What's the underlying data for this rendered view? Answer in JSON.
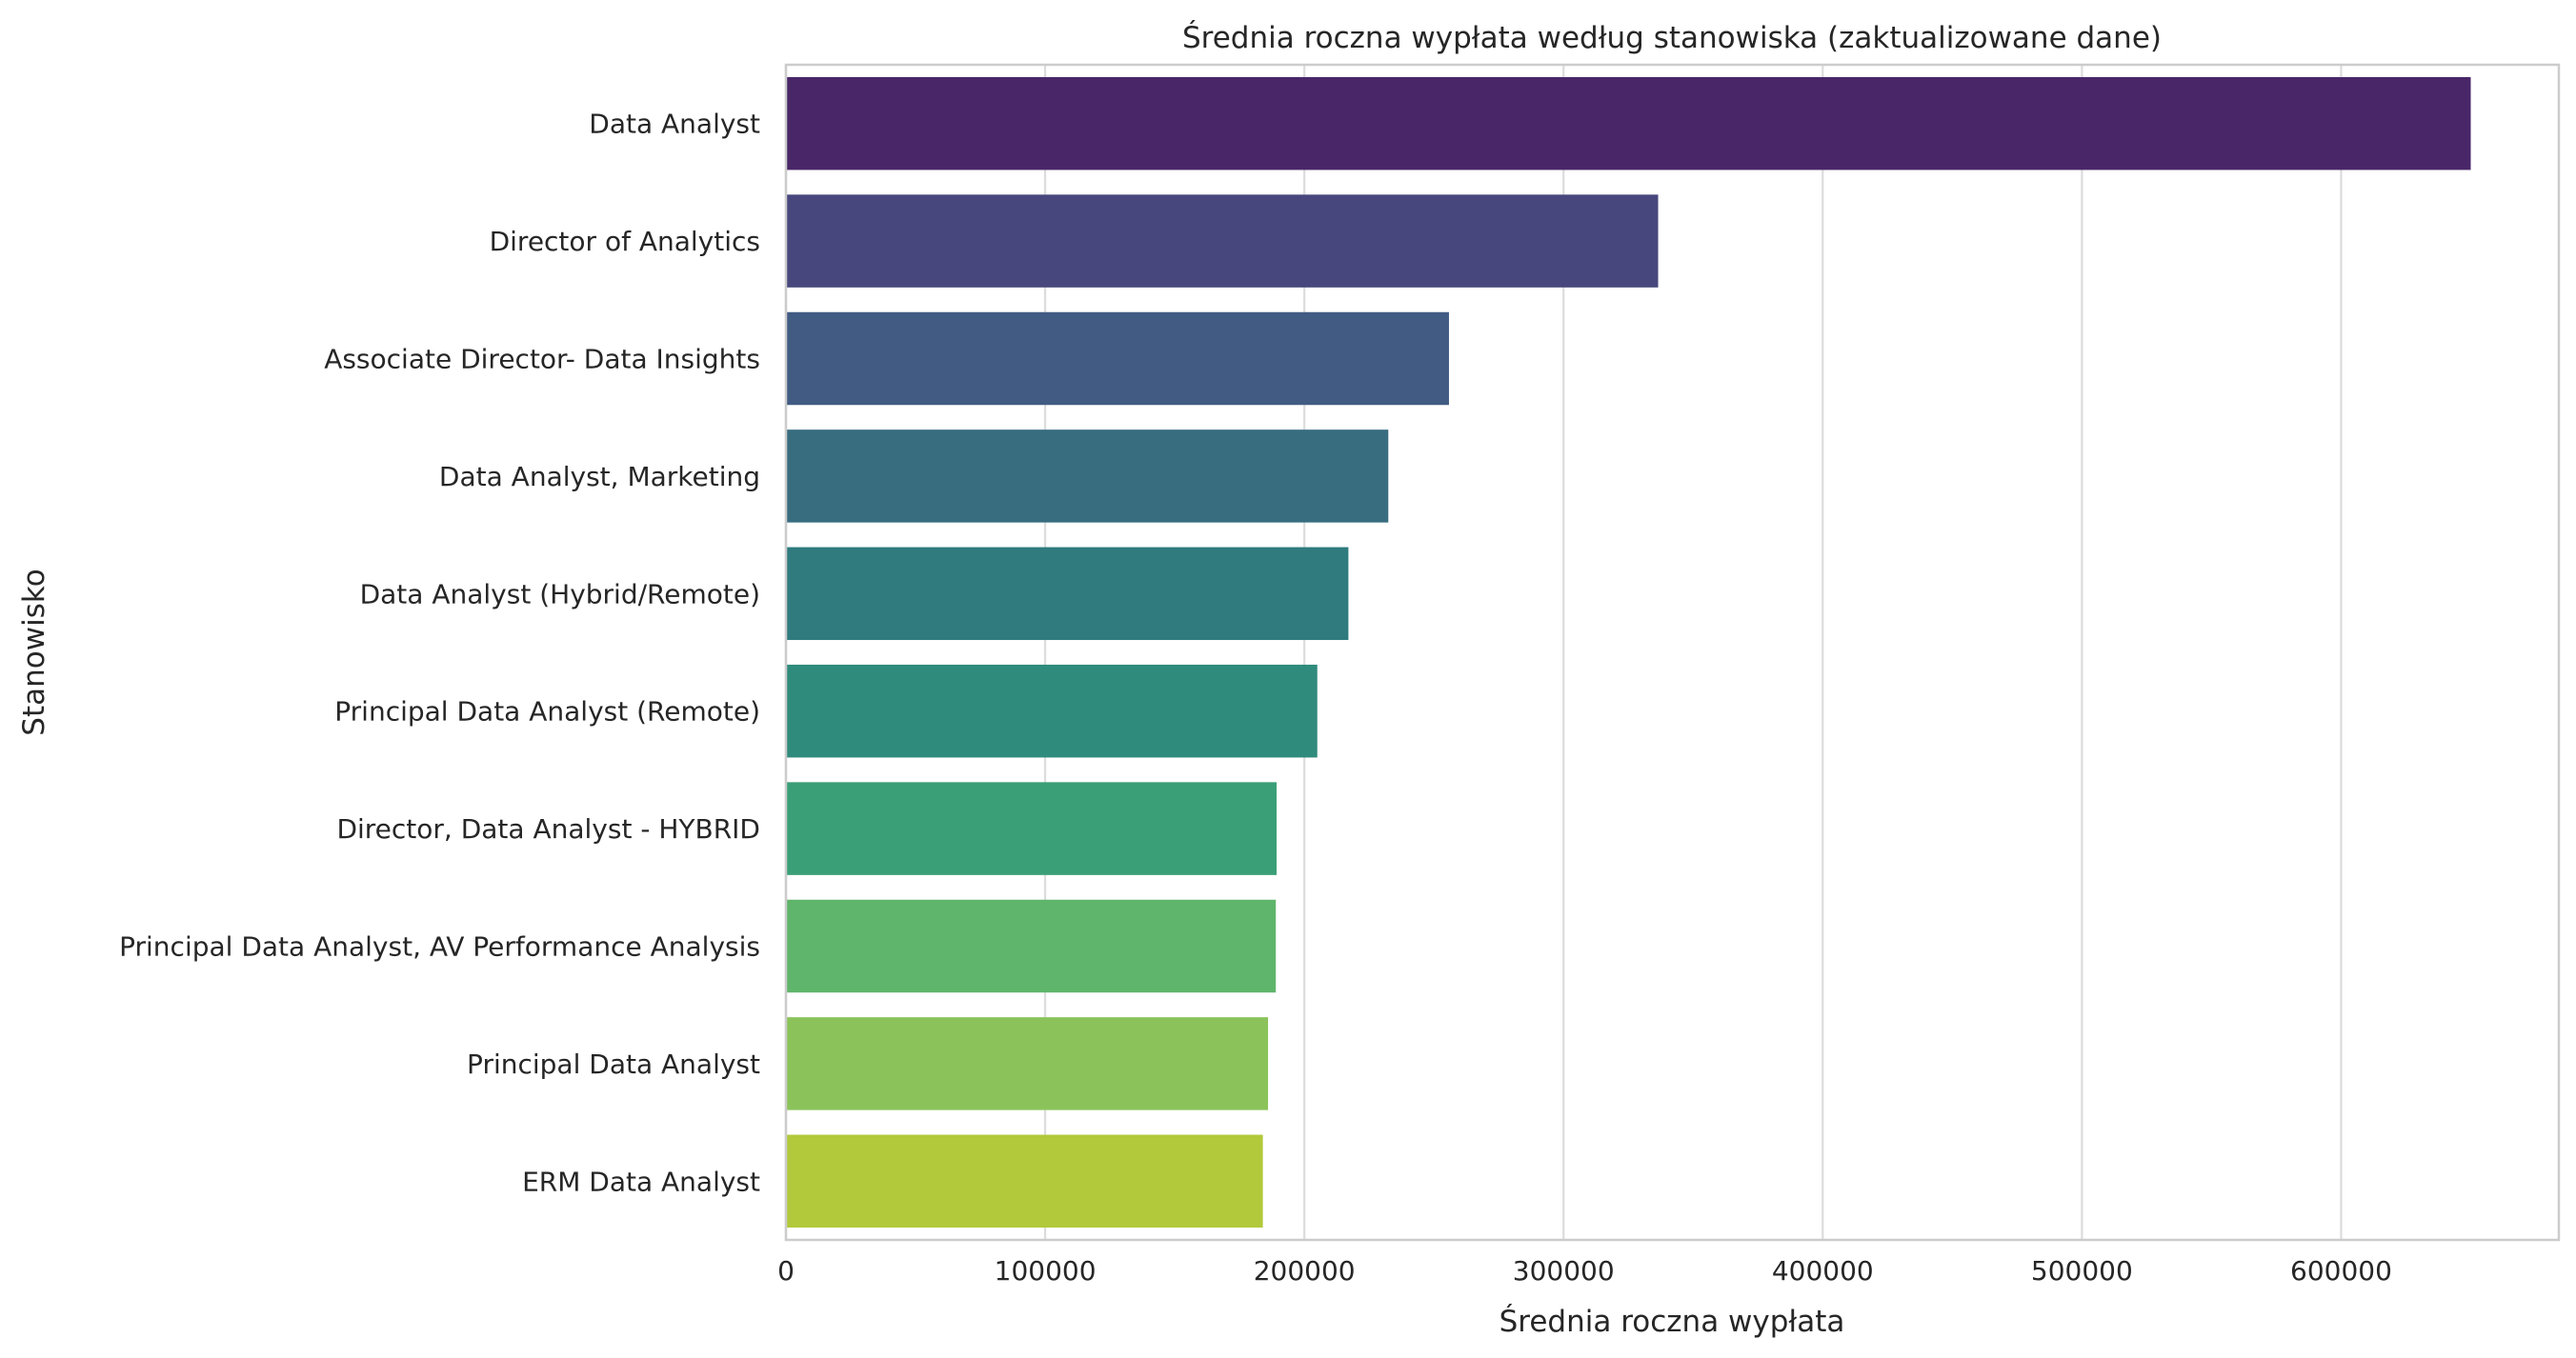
{
  "chart_data": {
    "type": "bar",
    "orientation": "horizontal",
    "title": "Średnia roczna wypłata według stanowiska (zaktualizowane dane)",
    "xlabel": "Średnia roczna wypłata",
    "ylabel": "Stanowisko",
    "categories": [
      "Data Analyst",
      "Director of Analytics",
      "Associate Director- Data Insights",
      "Data Analyst, Marketing",
      "Data Analyst (Hybrid/Remote)",
      "Principal Data Analyst (Remote)",
      "Director, Data Analyst - HYBRID",
      "Principal Data Analyst, AV Performance Analysis",
      "Principal Data Analyst",
      "ERM Data Analyst"
    ],
    "values": [
      650000,
      336500,
      255800,
      232400,
      217000,
      205000,
      189300,
      189000,
      186000,
      184000
    ],
    "colors": [
      "#482668",
      "#48477d",
      "#415b83",
      "#386d80",
      "#2f7b7e",
      "#2f8b7b",
      "#3a9f76",
      "#5fb56b",
      "#8bc35a",
      "#b1c93a"
    ],
    "xlim": [
      0,
      684000
    ],
    "xticks": [
      "0",
      "100000",
      "200000",
      "300000",
      "400000",
      "500000",
      "600000"
    ],
    "grid": "vertical",
    "legend": "none"
  }
}
